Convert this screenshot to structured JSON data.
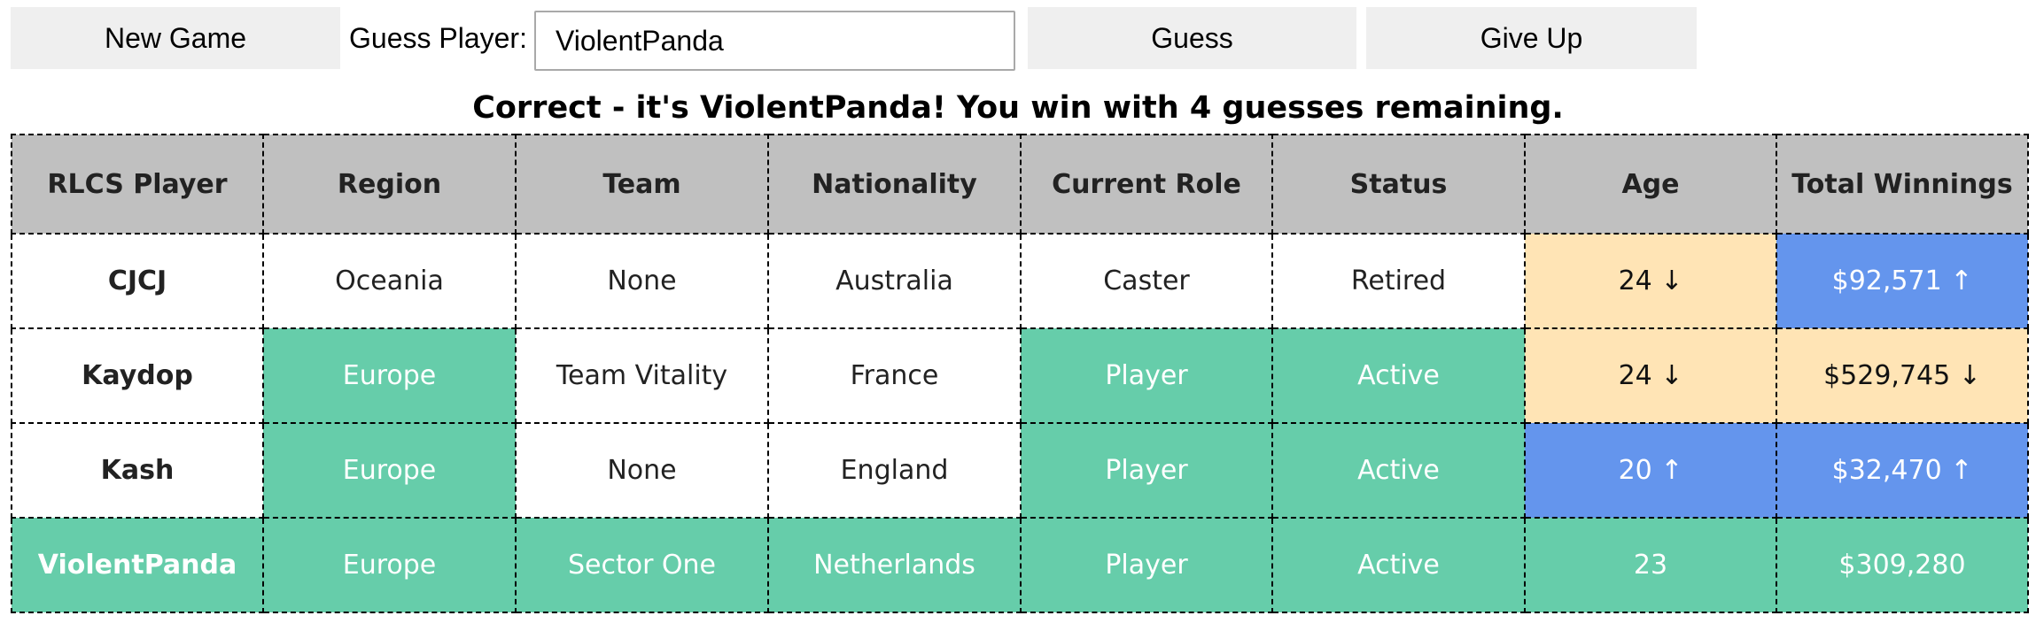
{
  "controls": {
    "new_game_label": "New Game",
    "guess_label": "Guess Player:",
    "guess_input_value": "ViolentPanda",
    "guess_button_label": "Guess",
    "give_up_label": "Give Up"
  },
  "message": "Correct - it's ViolentPanda! You win with 4 guesses remaining.",
  "colors": {
    "match": "#66cdaa",
    "close": "#ffe4b5",
    "miss_higher": "#6495ed",
    "header": "#c0c0c0"
  },
  "table": {
    "headers": [
      "RLCS Player",
      "Region",
      "Team",
      "Nationality",
      "Current Role",
      "Status",
      "Age",
      "Total Winnings"
    ],
    "rows": [
      {
        "cells": [
          {
            "text": "CJCJ",
            "color": "white"
          },
          {
            "text": "Oceania",
            "color": "white"
          },
          {
            "text": "None",
            "color": "white"
          },
          {
            "text": "Australia",
            "color": "white"
          },
          {
            "text": "Caster",
            "color": "white"
          },
          {
            "text": "Retired",
            "color": "white"
          },
          {
            "text": "24 ↓",
            "color": "orange"
          },
          {
            "text": "$92,571 ↑",
            "color": "blue"
          }
        ]
      },
      {
        "cells": [
          {
            "text": "Kaydop",
            "color": "white"
          },
          {
            "text": "Europe",
            "color": "green"
          },
          {
            "text": "Team Vitality",
            "color": "white"
          },
          {
            "text": "France",
            "color": "white"
          },
          {
            "text": "Player",
            "color": "green"
          },
          {
            "text": "Active",
            "color": "green"
          },
          {
            "text": "24 ↓",
            "color": "orange"
          },
          {
            "text": "$529,745 ↓",
            "color": "orange"
          }
        ]
      },
      {
        "cells": [
          {
            "text": "Kash",
            "color": "white"
          },
          {
            "text": "Europe",
            "color": "green"
          },
          {
            "text": "None",
            "color": "white"
          },
          {
            "text": "England",
            "color": "white"
          },
          {
            "text": "Player",
            "color": "green"
          },
          {
            "text": "Active",
            "color": "green"
          },
          {
            "text": "20 ↑",
            "color": "blue"
          },
          {
            "text": "$32,470 ↑",
            "color": "blue"
          }
        ]
      },
      {
        "cells": [
          {
            "text": "ViolentPanda",
            "color": "green"
          },
          {
            "text": "Europe",
            "color": "green"
          },
          {
            "text": "Sector One",
            "color": "green"
          },
          {
            "text": "Netherlands",
            "color": "green"
          },
          {
            "text": "Player",
            "color": "green"
          },
          {
            "text": "Active",
            "color": "green"
          },
          {
            "text": "23",
            "color": "green"
          },
          {
            "text": "$309,280",
            "color": "green"
          }
        ]
      }
    ]
  }
}
